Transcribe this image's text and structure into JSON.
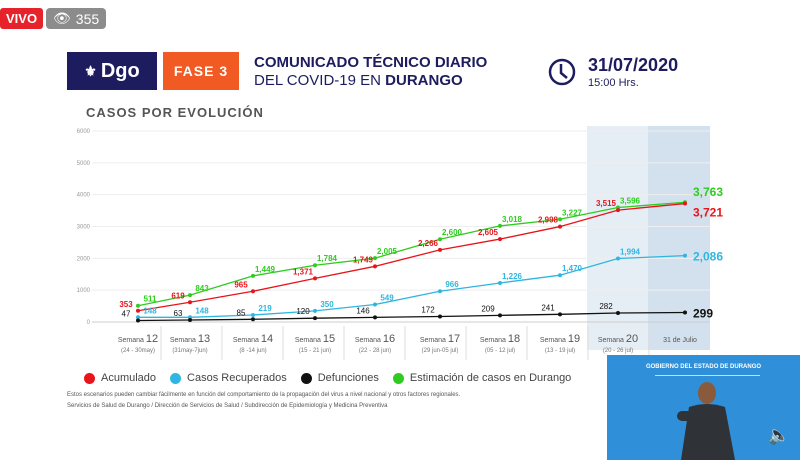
{
  "stream": {
    "live_label": "VIVO",
    "viewers": "355",
    "views_icon": "eye-icon"
  },
  "header": {
    "logo_text": "Dgo",
    "phase": "FASE 3",
    "title_line1": "COMUNICADO TÉCNICO DIARIO",
    "title_line2_prefix": "DEL COVID-19 EN ",
    "title_line2_bold": "DURANGO",
    "date": "31/07/2020",
    "time": "15:00 Hrs.",
    "brand_color": "#1c1c5e",
    "phase_color": "#f15a22"
  },
  "section_title": "CASOS POR EVOLUCIÓN",
  "chart_data": {
    "type": "line",
    "ylim": [
      0,
      6000
    ],
    "yticks": [
      "0",
      "1000",
      "2000",
      "3000",
      "4000",
      "5000",
      "6000"
    ],
    "grid": true,
    "categories": [
      {
        "week": "Semana",
        "num": "12",
        "range": "(24 - 30may)"
      },
      {
        "week": "Semana",
        "num": "13",
        "range": "(31may-7jun)"
      },
      {
        "week": "Semana",
        "num": "14",
        "range": "(8 -14 jun)"
      },
      {
        "week": "Semana",
        "num": "15",
        "range": "(15 - 21 jun)"
      },
      {
        "week": "Semana",
        "num": "16",
        "range": "(22 - 28 jun)"
      },
      {
        "week": "Semana",
        "num": "17",
        "range": "(29 jun-05 jul)"
      },
      {
        "week": "Semana",
        "num": "18",
        "range": "(05 - 12 jul)"
      },
      {
        "week": "Semana",
        "num": "19",
        "range": "(13 - 19 jul)"
      },
      {
        "week": "Semana",
        "num": "20",
        "range": "(20 - 26 jul)"
      },
      {
        "week": "31 de Julio",
        "num": "",
        "range": ""
      }
    ],
    "series": [
      {
        "name": "Estimación de casos en Durango",
        "color": "#2ecc1f",
        "values": [
          511,
          843,
          1449,
          1784,
          2005,
          2600,
          3018,
          3227,
          3596,
          3763
        ],
        "labels": [
          "511",
          "843",
          "1,449",
          "1,784",
          "2,005",
          "2,600",
          "3,018",
          "3,227",
          "3,596",
          "3,763"
        ]
      },
      {
        "name": "Acumulado",
        "color": "#e8141b",
        "values": [
          353,
          619,
          965,
          1371,
          1749,
          2266,
          2605,
          2998,
          3515,
          3721
        ],
        "labels": [
          "353",
          "619",
          "965",
          "1,371",
          "1,749",
          "2,266",
          "2,605",
          "2,998",
          "3,515",
          "3,721"
        ]
      },
      {
        "name": "Casos Recuperados",
        "color": "#2fb6e0",
        "values": [
          148,
          148,
          219,
          350,
          549,
          966,
          1226,
          1470,
          1994,
          2086
        ],
        "labels": [
          "148",
          "148",
          "219",
          "350",
          "549",
          "966",
          "1,226",
          "1,470",
          "1,994",
          "2,086"
        ]
      },
      {
        "name": "Defunciones",
        "color": "#111111",
        "values": [
          47,
          63,
          85,
          120,
          146,
          172,
          209,
          241,
          282,
          299
        ],
        "labels": [
          "47",
          "63",
          "85",
          "120",
          "146",
          "172",
          "209",
          "241",
          "282",
          "299"
        ]
      }
    ]
  },
  "legend": [
    {
      "label": "Acumulado",
      "color": "#e8141b"
    },
    {
      "label": "Casos Recuperados",
      "color": "#2fb6e0"
    },
    {
      "label": "Defunciones",
      "color": "#111111"
    },
    {
      "label": "Estimación de casos en Durango",
      "color": "#2ecc1f"
    }
  ],
  "notes": {
    "disclaimer": "Estos escenarios pueden cambiar fácilmente en función del comportamiento de la propagación del virus a nivel nacional y otros factores regionales.",
    "source": "Servicios de Salud de Durango / Dirección de Servicios de Salud / Subdirección de Epidemiología y Medicina Preventiva"
  },
  "video": {
    "banner": "GOBIERNO DEL ESTADO DE DURANGO",
    "volume_icon": "speaker-icon"
  }
}
